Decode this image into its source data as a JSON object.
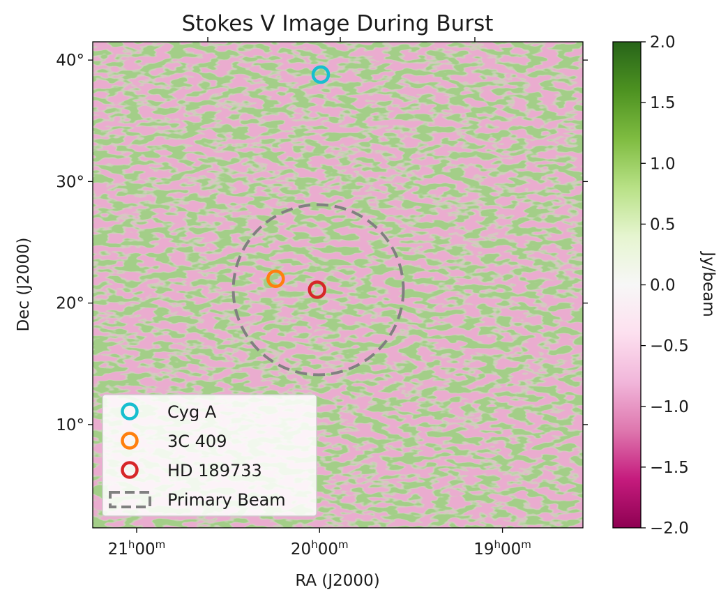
{
  "chart_data": {
    "type": "heatmap",
    "title": "Stokes V Image During Burst",
    "xlabel": "RA (J2000)",
    "ylabel": "Dec (J2000)",
    "x_ticks": [
      {
        "value": 315,
        "h": "21",
        "m": "00"
      },
      {
        "value": 300,
        "h": "20",
        "m": "00"
      },
      {
        "value": 285,
        "h": "19",
        "m": "00"
      }
    ],
    "y_ticks": [
      {
        "value": 40,
        "label": "40°"
      },
      {
        "value": 30,
        "label": "30°"
      },
      {
        "value": 20,
        "label": "20°"
      },
      {
        "value": 10,
        "label": "10°"
      }
    ],
    "xlim": [
      318.6,
      278.4
    ],
    "ylim": [
      1.5,
      41.5
    ],
    "colorbar": {
      "label": "Jy/beam",
      "range": [
        -2.0,
        2.0
      ],
      "ticks": [
        "2.0",
        "1.5",
        "1.0",
        "0.5",
        "0.0",
        "−0.5",
        "−1.0",
        "−1.5",
        "−2.0"
      ],
      "colormap": "PiYG",
      "stops": [
        "#8e0152",
        "#c51b7d",
        "#de77ae",
        "#f1b6da",
        "#fde0ef",
        "#f7f7f7",
        "#e6f5d0",
        "#b8e186",
        "#7fbc41",
        "#4d9221",
        "#276419"
      ]
    },
    "sources": [
      {
        "name": "Cyg A",
        "ra": 299.9,
        "dec": 38.8,
        "color": "#17becf"
      },
      {
        "name": "3C 409",
        "ra": 303.6,
        "dec": 22.0,
        "color": "#ff7f0e"
      },
      {
        "name": "HD 189733",
        "ra": 300.2,
        "dec": 21.1,
        "color": "#d62728"
      }
    ],
    "primary_beam": {
      "name": "Primary Beam",
      "center_ra": 300.1,
      "center_dec": 21.1,
      "radius_deg": 7.0,
      "color": "#808080"
    },
    "legend": {
      "placement": "lower-left",
      "entries": [
        "Cyg A",
        "3C 409",
        "HD 189733",
        "Primary Beam"
      ]
    }
  }
}
